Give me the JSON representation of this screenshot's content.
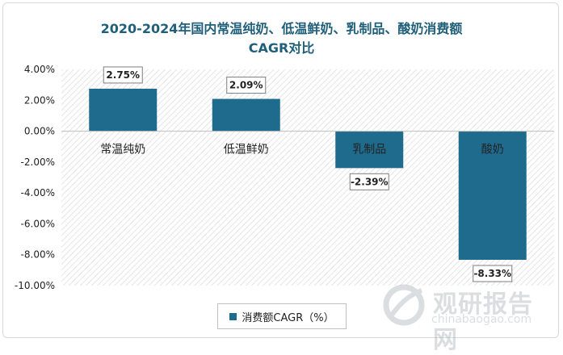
{
  "title_line1": "2020-2024年国内常温纯奶、低温鲜奶、乳制品、酸奶消费额",
  "title_line2": "CAGR对比",
  "legend_label": "消费额CAGR（%）",
  "watermark": {
    "cn": "观研报告网",
    "en": "chinabaogao.com"
  },
  "colors": {
    "bar": "#1f6b8e",
    "title": "#1f5f7a"
  },
  "chart_data": {
    "type": "bar",
    "title": "2020-2024年国内常温纯奶、低温鲜奶、乳制品、酸奶消费额CAGR对比",
    "categories": [
      "常温纯奶",
      "低温鲜奶",
      "乳制品",
      "酸奶"
    ],
    "series": [
      {
        "name": "消费额CAGR（%）",
        "values": [
          2.75,
          2.09,
          -2.39,
          -8.33
        ]
      }
    ],
    "value_labels": [
      "2.75%",
      "2.09%",
      "-2.39%",
      "-8.33%"
    ],
    "ylim": [
      -10,
      4
    ],
    "yticks": [
      "4.00%",
      "2.00%",
      "0.00%",
      "-2.00%",
      "-4.00%",
      "-6.00%",
      "-8.00%",
      "-10.00%"
    ],
    "ytick_values": [
      4,
      2,
      0,
      -2,
      -4,
      -6,
      -8,
      -10
    ],
    "legend": "bottom-center",
    "grid": false
  }
}
